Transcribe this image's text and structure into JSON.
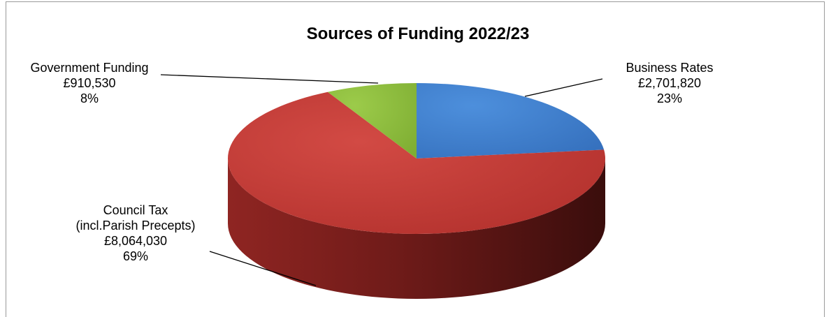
{
  "chart_data": {
    "type": "pie",
    "title": "Sources of Funding 2022/23",
    "slices": [
      {
        "name": "Business Rates",
        "label_lines": [
          "Business Rates",
          "£2,701,820",
          "23%"
        ],
        "value": 2701820,
        "percent": 23,
        "color": "#3f7fcf"
      },
      {
        "name": "Council Tax (incl.Parish Precepts)",
        "label_lines": [
          "Council Tax",
          "(incl.Parish Precepts)",
          "£8,064,030",
          "69%"
        ],
        "value": 8064030,
        "percent": 69,
        "color": "#c43a36"
      },
      {
        "name": "Government Funding",
        "label_lines": [
          "Government Funding",
          "£910,530",
          "8%"
        ],
        "value": 910530,
        "percent": 8,
        "color": "#8fbd3d"
      }
    ],
    "style": "3d-pie",
    "legend": "none"
  }
}
